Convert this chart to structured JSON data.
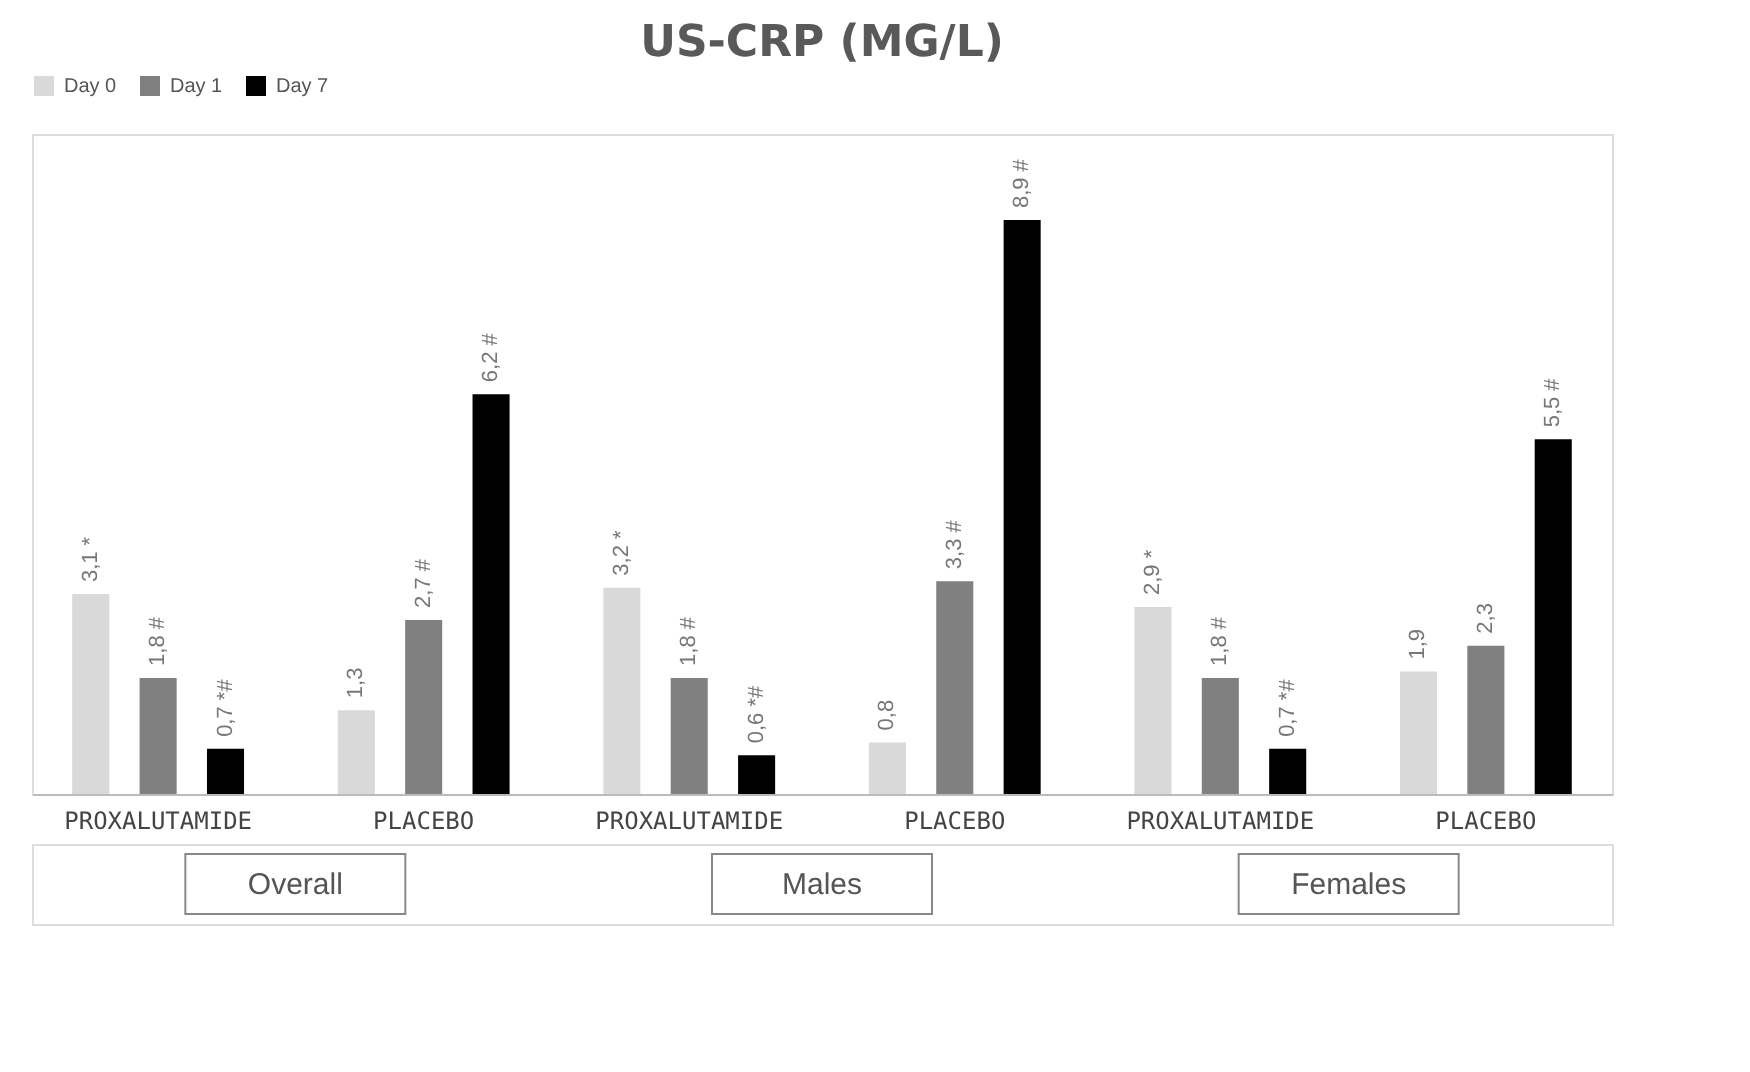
{
  "chart_data": {
    "type": "bar",
    "title": "US-CRP (MG/L)",
    "categories": [
      "PROXALUTAMIDE",
      "PLACEBO",
      "PROXALUTAMIDE",
      "PLACEBO",
      "PROXALUTAMIDE",
      "PLACEBO"
    ],
    "series": [
      {
        "name": "Day 0",
        "color": "#d9d9d9",
        "values": [
          3.1,
          1.3,
          3.2,
          0.8,
          2.9,
          1.9
        ],
        "value_labels": [
          "3,1 *",
          "1,3",
          "3,2 *",
          "0,8",
          "2,9 *",
          "1,9"
        ]
      },
      {
        "name": "Day 1",
        "color": "#808080",
        "values": [
          1.8,
          2.7,
          1.8,
          3.3,
          1.8,
          2.3
        ],
        "value_labels": [
          "1,8 #",
          "2,7 #",
          "1,8 #",
          "3,3 #",
          "1,8 #",
          "2,3"
        ]
      },
      {
        "name": "Day 7",
        "color": "#000000",
        "values": [
          0.7,
          6.2,
          0.6,
          8.9,
          0.7,
          5.5
        ],
        "value_labels": [
          "0,7 *#",
          "6,2 #",
          "0,6 *#",
          "8,9 #",
          "0,7 *#",
          "5,5 #"
        ]
      }
    ],
    "annotations": [
      "Overall",
      "Males",
      "Females"
    ],
    "legend": "top",
    "grid": false
  }
}
